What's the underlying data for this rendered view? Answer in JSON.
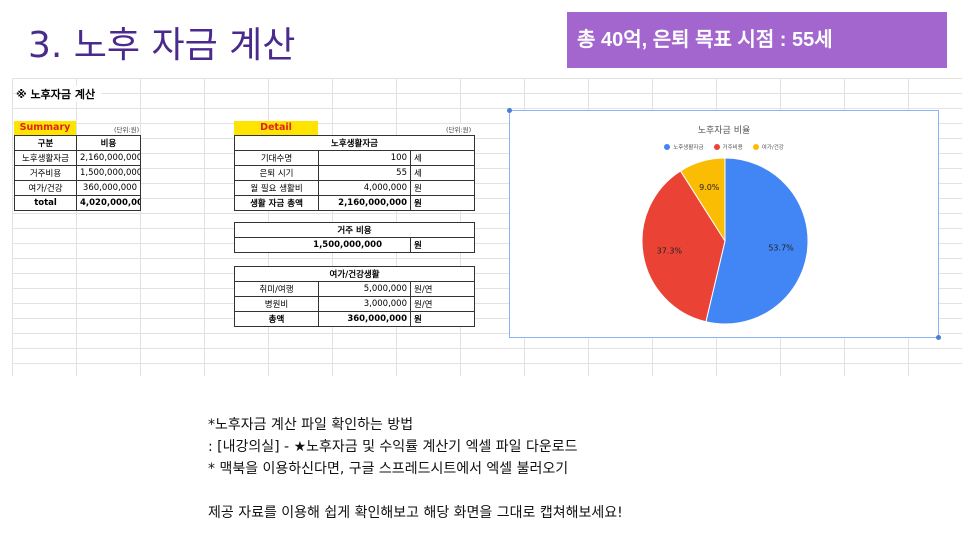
{
  "slide": {
    "title": "3. 노후 자금 계산",
    "banner": "총 40억, 은퇴 목표 시점  : 55세"
  },
  "sheet": {
    "header": "※ 노후자금 계산",
    "unit_label": "(단위:원)",
    "summary": {
      "label": "Summary",
      "col_category": "구분",
      "col_cost": "비용",
      "rows": [
        {
          "name": "노후생활자금",
          "value": "2,160,000,000"
        },
        {
          "name": "거주비용",
          "value": "1,500,000,000"
        },
        {
          "name": "여가/건강",
          "value": "360,000,000"
        }
      ],
      "total_name": "total",
      "total_value": "4,020,000,000"
    },
    "detail": {
      "label": "Detail",
      "living": {
        "title": "노후생활자금",
        "rows": [
          {
            "name": "기대수명",
            "value": "100",
            "unit": "세"
          },
          {
            "name": "은퇴 시기",
            "value": "55",
            "unit": "세"
          },
          {
            "name": "월 필요 생활비",
            "value": "4,000,000",
            "unit": "원"
          }
        ],
        "total_name": "생활 자금 총액",
        "total_value": "2,160,000,000",
        "total_unit": "원"
      },
      "housing": {
        "title": "거주 비용",
        "value": "1,500,000,000",
        "unit": "원"
      },
      "leisure": {
        "title": "여가/건강생활",
        "rows": [
          {
            "name": "취미/여행",
            "value": "5,000,000",
            "unit": "원/연"
          },
          {
            "name": "병원비",
            "value": "3,000,000",
            "unit": "원/연"
          }
        ],
        "total_name": "총액",
        "total_value": "360,000,000",
        "total_unit": "원"
      }
    }
  },
  "chart_data": {
    "type": "pie",
    "title": "노후자금 비율",
    "categories": [
      "노후생활자금",
      "거주비용",
      "여가/건강"
    ],
    "values": [
      53.7,
      37.3,
      9.0
    ],
    "labels": [
      "53.7%",
      "37.3%",
      "9.0%"
    ],
    "colors": [
      "#4285f4",
      "#ea4335",
      "#fbbc04"
    ],
    "legend_position": "top"
  },
  "notes": {
    "line1": "*노후자금 계산 파일 확인하는 방법",
    "line2": ": [내강의실] - ★노후자금 및 수익률 계산기 엑셀 파일 다운로드",
    "line3": "* 맥북을 이용하신다면, 구글 스프레드시트에서 엑셀 불러오기",
    "line4": "제공 자료를 이용해 쉽게 확인해보고 해당 화면을 그대로 캡쳐해보세요!"
  }
}
